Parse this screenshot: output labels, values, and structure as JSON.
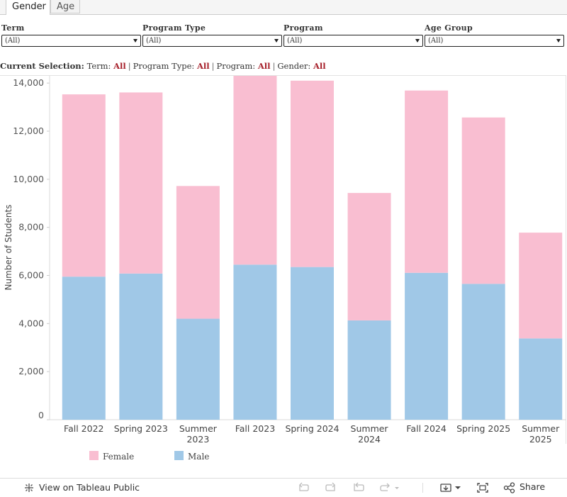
{
  "tabs": [
    {
      "label": "Gender",
      "active": true
    },
    {
      "label": "Age",
      "active": false
    }
  ],
  "filters": [
    {
      "label": "Term",
      "value": "(All)"
    },
    {
      "label": "Program  Type",
      "value": "(All)"
    },
    {
      "label": "Program",
      "value": "(All)"
    },
    {
      "label": "Age  Group",
      "value": "(All)"
    }
  ],
  "selection": {
    "prefix": "Current  Selection:",
    "items": [
      {
        "key": "Term:",
        "value": "All"
      },
      {
        "key": "Program Type:",
        "value": "All"
      },
      {
        "key": "Program:",
        "value": "All"
      },
      {
        "key": "Gender:",
        "value": "All"
      }
    ],
    "separator": "|"
  },
  "chart_data": {
    "type": "bar",
    "stacked": true,
    "ylabel": "Number of Students",
    "ylim": [
      0,
      14300
    ],
    "yticks": [
      0,
      2000,
      4000,
      6000,
      8000,
      10000,
      12000,
      14000
    ],
    "ytick_labels": [
      "0",
      "2,000",
      "4,000",
      "6,000",
      "8,000",
      "10,000",
      "12,000",
      "14,000"
    ],
    "categories": [
      "Fall 2022",
      "Spring 2023",
      "Summer 2023",
      "Fall 2023",
      "Spring 2024",
      "Summer 2024",
      "Fall 2024",
      "Spring 2025",
      "Summer 2025"
    ],
    "category_lines": [
      [
        "Fall 2022"
      ],
      [
        "Spring 2023"
      ],
      [
        "Summer",
        "2023"
      ],
      [
        "Fall 2023"
      ],
      [
        "Spring 2024"
      ],
      [
        "Summer",
        "2024"
      ],
      [
        "Fall 2024"
      ],
      [
        "Spring 2025"
      ],
      [
        "Summer",
        "2025"
      ]
    ],
    "series": [
      {
        "name": "Male",
        "color": "#a0c8e7",
        "values": [
          5950,
          6080,
          4200,
          6450,
          6350,
          4130,
          6110,
          5650,
          3380
        ]
      },
      {
        "name": "Female",
        "color": "#f9bed1",
        "values": [
          7580,
          7530,
          5520,
          7860,
          7750,
          5300,
          7580,
          6920,
          4400
        ]
      }
    ],
    "legend": [
      {
        "name": "Female",
        "color": "#f9bed1"
      },
      {
        "name": "Male",
        "color": "#a0c8e7"
      }
    ],
    "legend_position": "bottom-left",
    "grid": false
  },
  "toolbar": {
    "view_label": "View on Tableau Public",
    "share_label": "Share",
    "icons": [
      "undo-icon",
      "redo-icon",
      "revert-icon",
      "refresh-icon",
      "download-icon",
      "fullscreen-icon",
      "share-icon"
    ]
  }
}
